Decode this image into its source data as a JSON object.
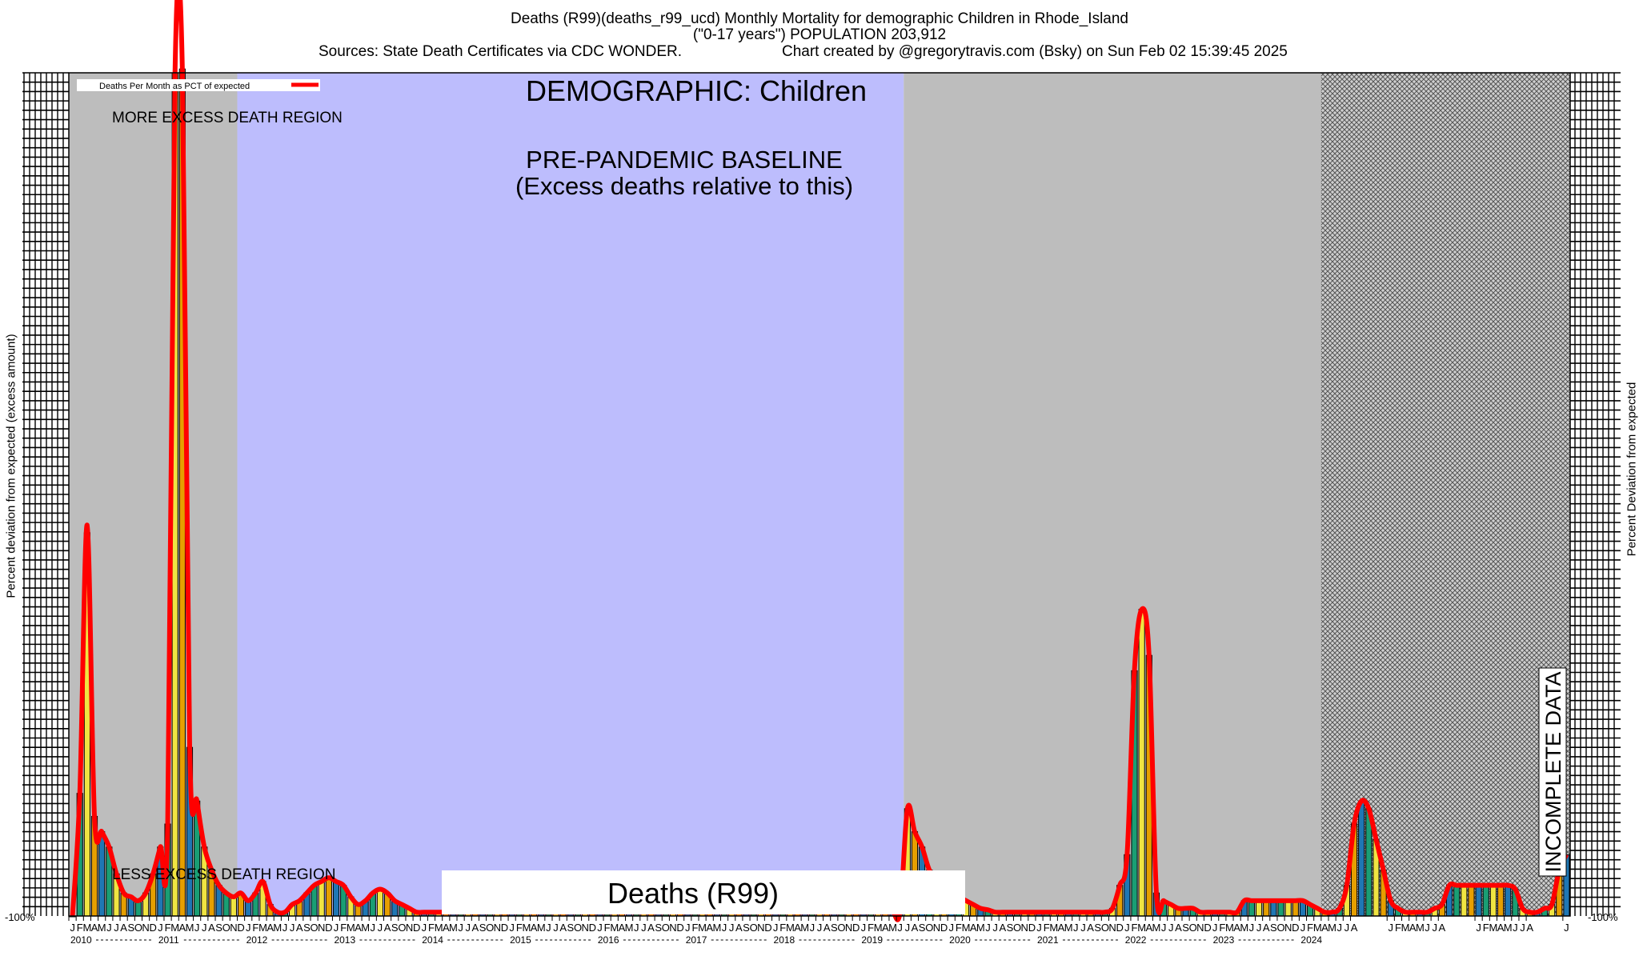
{
  "title": {
    "line1": "Deaths (R99)(deaths_r99_ucd) Monthly Mortality for demographic Children in Rhode_Island",
    "line2": "(\"0-17 years\") POPULATION 203,912",
    "sources": "Sources: State Death Certificates via CDC WONDER.",
    "credit": "Chart created by @gregorytravis.com (Bsky) on Sun Feb 02 15:39:45 2025"
  },
  "ylabel_left": "Percent deviation from expected (excess amount)",
  "ylabel_right": "Percent Deviation from expected",
  "chart_data": {
    "type": "bar",
    "months_per_year": [
      "J",
      "F",
      "M",
      "A",
      "M",
      "J",
      "J",
      "A",
      "S",
      "O",
      "N",
      "D"
    ],
    "years": [
      "2010",
      "2011",
      "2012",
      "2013",
      "2014",
      "2015",
      "2016",
      "2017",
      "2018",
      "2019",
      "2020",
      "2021",
      "2022",
      "2023",
      "2024"
    ],
    "last_year_months": [
      "J",
      "F",
      "M",
      "A",
      "M",
      "J",
      "J",
      "A"
    ],
    "legend": "Deaths Per Month as PCT of expected",
    "annotations": {
      "demographic": "DEMOGRAPHIC: Children",
      "more_excess": "MORE EXCESS DEATH REGION",
      "less_excess": "LESS EXCESS DEATH REGION",
      "baseline_line1": "PRE-PANDEMIC BASELINE",
      "baseline_line2": "(Excess deaths relative to this)",
      "incomplete": "INCOMPLETE DATA",
      "footer_label": "Deaths (R99)"
    },
    "ylim": [
      -100,
      1000
    ],
    "y_tick_label_bottom": "-100%",
    "regions": {
      "baseline_start_index": 23,
      "baseline_end_index": 114,
      "incomplete_start_index": 171
    },
    "values": [
      -100,
      60,
      400,
      30,
      10,
      -10,
      -45,
      -70,
      -75,
      -80,
      -70,
      -45,
      -10,
      20,
      1000,
      1005,
      120,
      50,
      -10,
      -40,
      -60,
      -70,
      -75,
      -70,
      -80,
      -70,
      -55,
      -85,
      -95,
      -95,
      -85,
      -80,
      -70,
      -60,
      -55,
      -50,
      -55,
      -60,
      -75,
      -85,
      -80,
      -70,
      -65,
      -70,
      -80,
      -85,
      -90,
      -95,
      -95,
      -95,
      -95,
      -95,
      -95,
      -95,
      -95,
      -95,
      -95,
      -95,
      -95,
      -95,
      -95,
      -95,
      -95,
      -95,
      -95,
      -95,
      -95,
      -95,
      -95,
      -95,
      -95,
      -95,
      -95,
      -95,
      -95,
      -95,
      -95,
      -95,
      -95,
      -95,
      -95,
      -95,
      -95,
      -95,
      -95,
      -95,
      -95,
      -95,
      -95,
      -95,
      -95,
      -95,
      -95,
      -95,
      -95,
      -95,
      -95,
      -95,
      -95,
      -95,
      -95,
      -95,
      -95,
      -95,
      -95,
      -95,
      -95,
      -95,
      -95,
      -95,
      -95,
      -95,
      -95,
      -95,
      40,
      10,
      -10,
      -40,
      -50,
      -60,
      -70,
      -75,
      -80,
      -85,
      -90,
      -92,
      -95,
      -95,
      -95,
      -95,
      -95,
      -95,
      -95,
      -95,
      -95,
      -95,
      -95,
      -95,
      -95,
      -95,
      -95,
      -95,
      -90,
      -60,
      -20,
      220,
      300,
      240,
      -70,
      -80,
      -85,
      -90,
      -90,
      -90,
      -95,
      -95,
      -95,
      -95,
      -95,
      -95,
      -80,
      -80,
      -80,
      -80,
      -80,
      -80,
      -80,
      -80,
      -80,
      -85,
      -90,
      -95,
      -95,
      -90,
      -60,
      20,
      50,
      40,
      0,
      -40,
      -80,
      -90,
      -95,
      -95,
      -95,
      -95,
      -90,
      -85,
      -60,
      -60,
      -60,
      -60,
      -60,
      -60,
      -60,
      -60,
      -60,
      -65,
      -90,
      -95,
      -95,
      -90,
      -85,
      -40,
      -20
    ],
    "line_values": [
      -100,
      60,
      410,
      30,
      10,
      -10,
      -45,
      -70,
      -75,
      -80,
      -70,
      -45,
      -10,
      20,
      1000,
      1005,
      120,
      50,
      -10,
      -40,
      -60,
      -70,
      -75,
      -70,
      -80,
      -70,
      -55,
      -85,
      -95,
      -95,
      -85,
      -80,
      -70,
      -60,
      -55,
      -50,
      -55,
      -60,
      -75,
      -85,
      -80,
      -70,
      -65,
      -70,
      -80,
      -85,
      -90,
      -95,
      -95,
      -95,
      -95,
      -95,
      -95,
      -95,
      -95,
      -95,
      -95,
      -95,
      -95,
      -95,
      -95,
      -95,
      -95,
      -95,
      -95,
      -95,
      -95,
      -95,
      -95,
      -95,
      -95,
      -95,
      -95,
      -95,
      -95,
      -95,
      -95,
      -95,
      -95,
      -95,
      -95,
      -95,
      -95,
      -95,
      -95,
      -95,
      -95,
      -95,
      -95,
      -95,
      -95,
      -95,
      -95,
      -95,
      -95,
      -95,
      -95,
      -95,
      -95,
      -95,
      -95,
      -95,
      -95,
      -95,
      -95,
      -95,
      -95,
      -95,
      -95,
      -95,
      -95,
      -95,
      -95,
      -95,
      40,
      10,
      -10,
      -40,
      -50,
      -60,
      -70,
      -75,
      -80,
      -85,
      -90,
      -92,
      -95,
      -95,
      -95,
      -95,
      -95,
      -95,
      -95,
      -95,
      -95,
      -95,
      -95,
      -95,
      -95,
      -95,
      -95,
      -95,
      -90,
      -60,
      -20,
      220,
      300,
      240,
      -70,
      -80,
      -85,
      -90,
      -90,
      -90,
      -95,
      -95,
      -95,
      -95,
      -95,
      -95,
      -80,
      -80,
      -80,
      -80,
      -80,
      -80,
      -80,
      -80,
      -80,
      -85,
      -90,
      -95,
      -95,
      -90,
      -60,
      20,
      50,
      40,
      0,
      -40,
      -80,
      -90,
      -95,
      -95,
      -95,
      -95,
      -90,
      -85,
      -60,
      -60,
      -60,
      -60,
      -60,
      -60,
      -60,
      -60,
      -60,
      -65,
      -90,
      -95,
      -95,
      -90,
      -85,
      -40,
      -20
    ],
    "bar_colors_by_index": {
      "green": "#1a9e74",
      "blue": "#1f77b4",
      "yellow": "#f0e442",
      "orange": "#e69f00"
    },
    "colors": {
      "baseline_region": "#bdbdfd",
      "outer_region": "#bdbdbd",
      "line": "#ff0000"
    }
  }
}
